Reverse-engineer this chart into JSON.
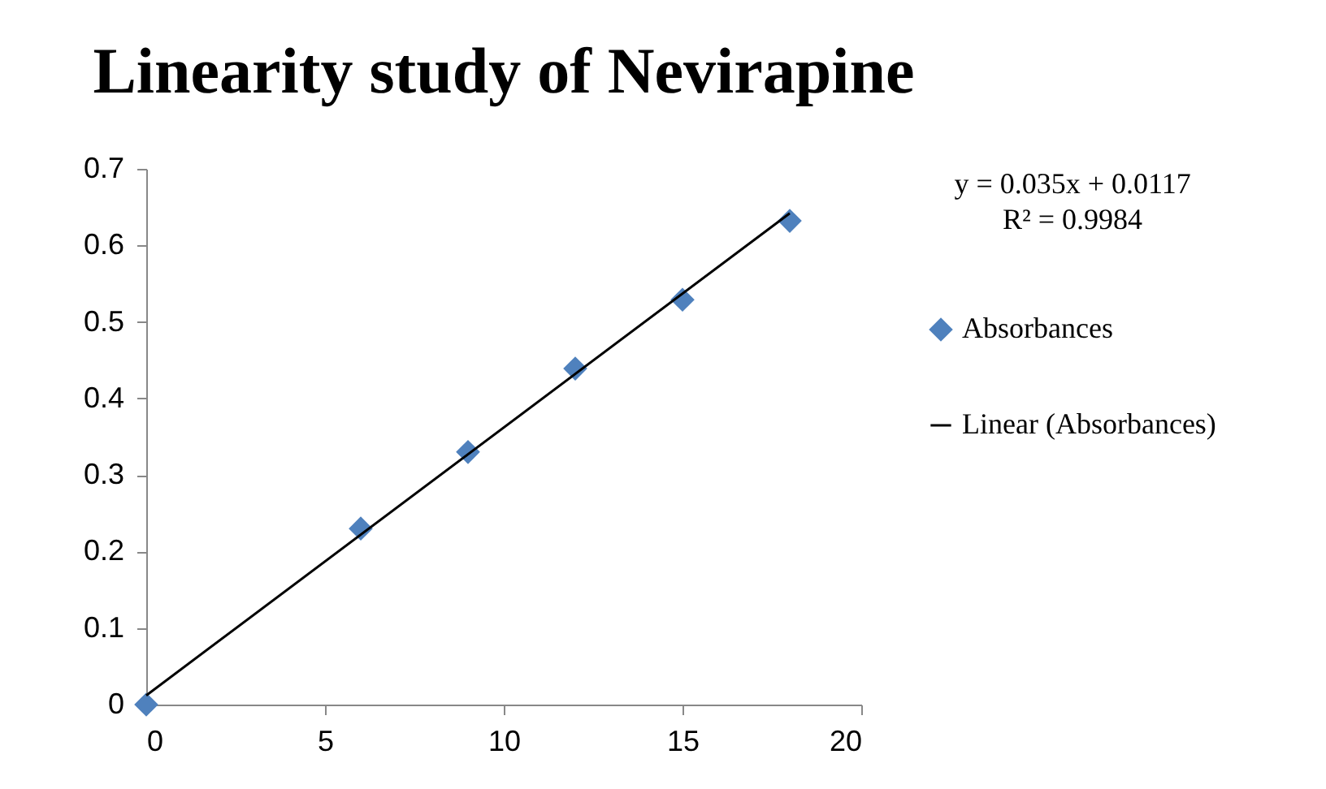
{
  "chart_data": {
    "type": "scatter",
    "title": "Linearity study of Nevirapine",
    "series": [
      {
        "name": "Absorbances",
        "marker": "diamond",
        "color": "#4f81bd",
        "x": [
          0,
          6,
          9,
          12,
          15,
          18
        ],
        "values": [
          0,
          0.23,
          0.33,
          0.439,
          0.529,
          0.632
        ]
      },
      {
        "name": "Linear (Absorbances)",
        "type": "line",
        "marker": "none",
        "line_style": "solid",
        "color": "#000000",
        "x": [
          0,
          18
        ],
        "values": [
          0.012,
          0.642
        ]
      }
    ],
    "xlim": [
      0,
      20
    ],
    "xticks": [
      0,
      5,
      10,
      15,
      20
    ],
    "ylim": [
      0,
      0.7
    ],
    "yticks": [
      0,
      0.1,
      0.2,
      0.3,
      0.4,
      0.5,
      0.6,
      0.7
    ],
    "grid": false,
    "legend": "right",
    "annotations": [
      "y = 0.035x + 0.0117",
      "R² = 0.9984"
    ]
  }
}
